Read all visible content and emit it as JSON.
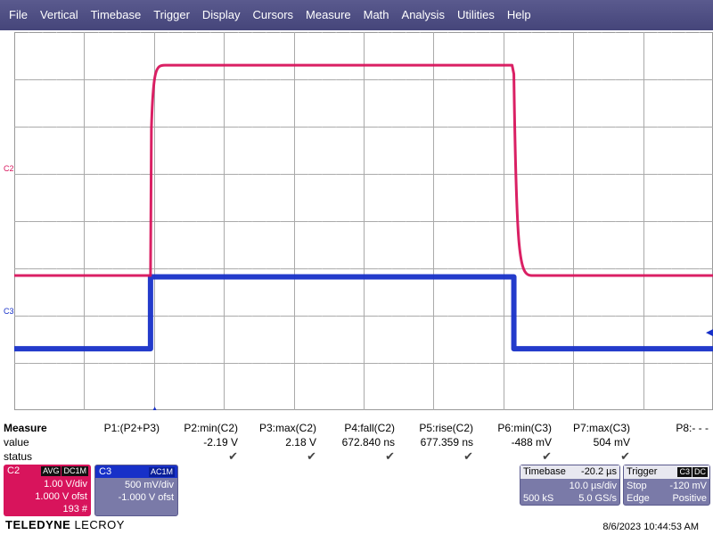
{
  "menu": [
    "File",
    "Vertical",
    "Timebase",
    "Trigger",
    "Display",
    "Cursors",
    "Measure",
    "Math",
    "Analysis",
    "Utilities",
    "Help"
  ],
  "channels": {
    "c2": {
      "marker": "C2",
      "color": "#d8145c"
    },
    "c3": {
      "marker": "C3",
      "color": "#1730c8"
    }
  },
  "trace_data": {
    "type": "line",
    "time_divisions": 10,
    "c2": {
      "low_div": -1.15,
      "high_div": 3.3,
      "rise_div": -3.05,
      "fall_div": 2.15
    },
    "c3": {
      "low_div": -2.7,
      "high_div": -1.18,
      "rise_div": -3.05,
      "fall_div": 2.15
    }
  },
  "measure": {
    "title": "Measure",
    "row_labels": [
      "value",
      "status"
    ],
    "params": [
      {
        "name": "P1:(P2+P3)",
        "value": "",
        "status": ""
      },
      {
        "name": "P2:min(C2)",
        "value": "-2.19 V",
        "status": "✔"
      },
      {
        "name": "P3:max(C2)",
        "value": "2.18 V",
        "status": "✔"
      },
      {
        "name": "P4:fall(C2)",
        "value": "672.840 ns",
        "status": "✔"
      },
      {
        "name": "P5:rise(C2)",
        "value": "677.359 ns",
        "status": "✔"
      },
      {
        "name": "P6:min(C3)",
        "value": "-488 mV",
        "status": "✔"
      },
      {
        "name": "P7:max(C3)",
        "value": "504 mV",
        "status": "✔"
      },
      {
        "name": "P8:- - -",
        "value": "",
        "status": ""
      }
    ]
  },
  "c2_box": {
    "name": "C2",
    "tags": [
      "AVG",
      "DC1M"
    ],
    "vdiv": "1.00 V/div",
    "ofst": "1.000 V ofst",
    "count": "193 #"
  },
  "c3_box": {
    "name": "C3",
    "tags": [
      "AC1M"
    ],
    "vdiv": "500 mV/div",
    "ofst": "-1.000 V ofst"
  },
  "timebase": {
    "label": "Timebase",
    "delay": "-20.2 µs",
    "tdiv": "10.0 µs/div",
    "samples": "500 kS",
    "rate": "5.0 GS/s"
  },
  "trigger": {
    "label": "Trigger",
    "tags": [
      "C3",
      "DC"
    ],
    "mode": "Stop",
    "level": "-120 mV",
    "type": "Edge",
    "slope": "Positive"
  },
  "brand": {
    "main": "TELEDYNE",
    "sub": " LECROY"
  },
  "datetime": "8/6/2023 10:44:53 AM"
}
